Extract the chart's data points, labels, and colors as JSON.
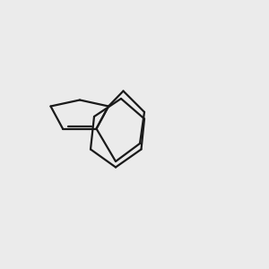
{
  "bg_color": "#ebebeb",
  "bond_color": "#1a1a1a",
  "N_color": "#1414ff",
  "O_color": "#ff1414",
  "Cl_color": "#147814",
  "NH_color": "#4a9090",
  "lw": 1.6,
  "fs": 10,
  "sfs": 9,
  "dbo": 0.055
}
